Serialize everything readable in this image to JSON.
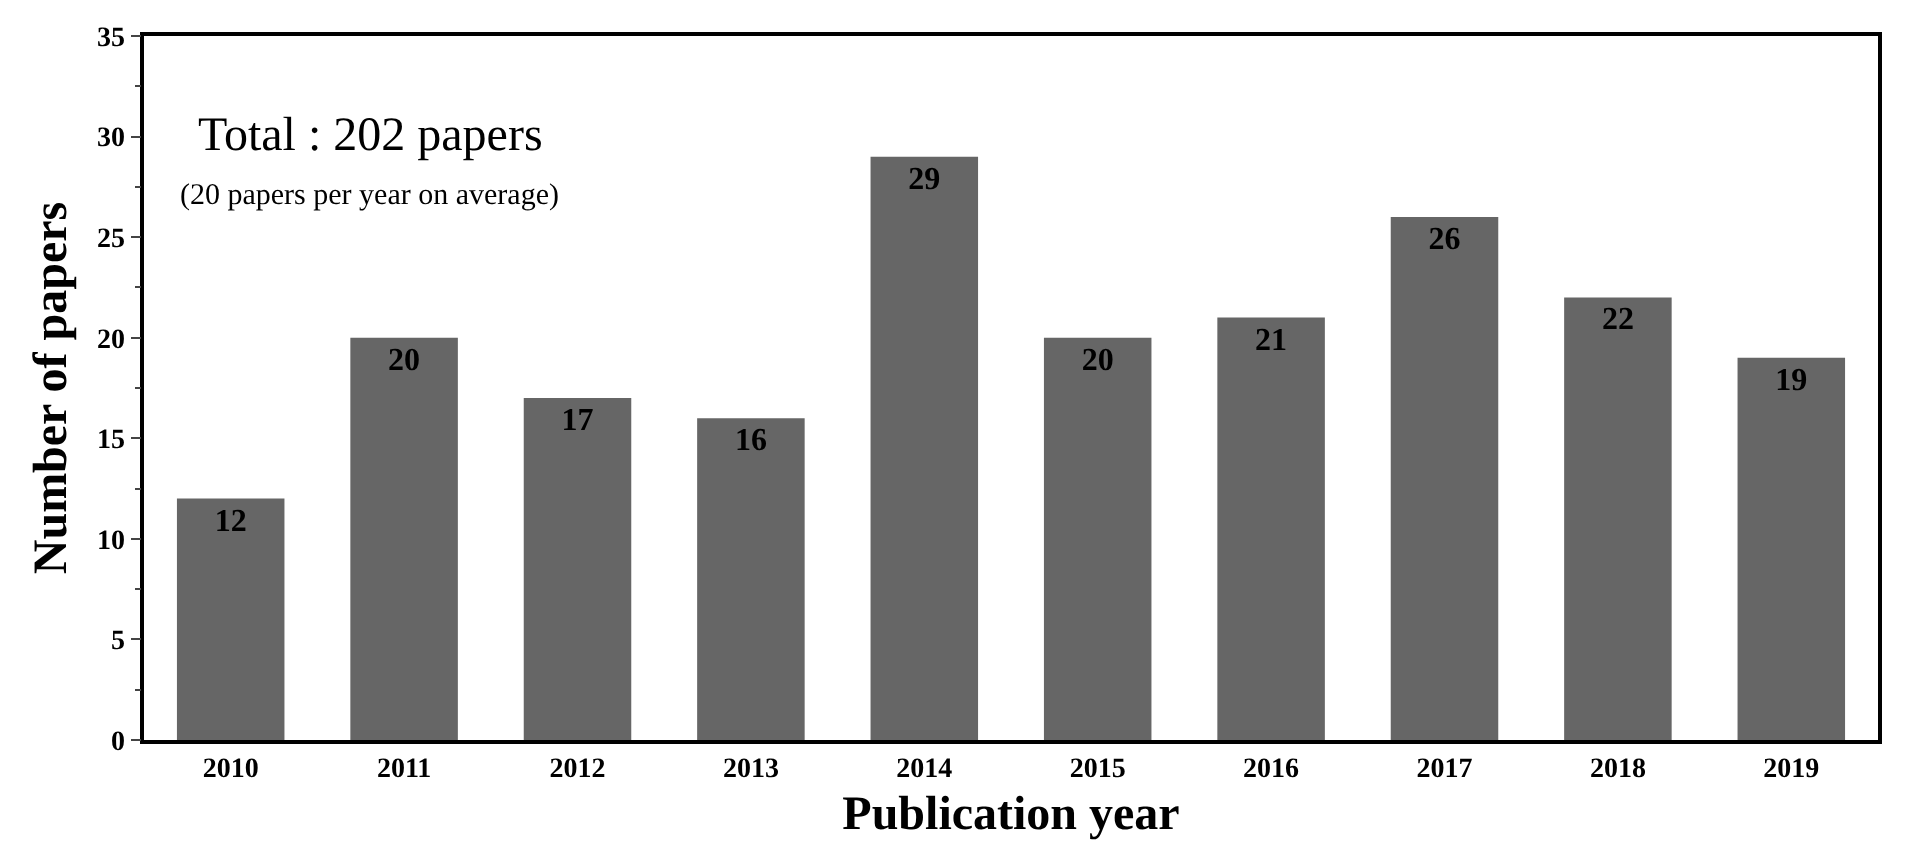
{
  "chart_data": {
    "type": "bar",
    "xlabel": "Publication year",
    "ylabel": "Number of papers",
    "categories": [
      "2010",
      "2011",
      "2012",
      "2013",
      "2014",
      "2015",
      "2016",
      "2017",
      "2018",
      "2019"
    ],
    "values": [
      12,
      20,
      17,
      16,
      29,
      20,
      21,
      26,
      22,
      19
    ],
    "color": "#666666",
    "ylim": [
      0,
      35
    ],
    "yticks": [
      0,
      5,
      10,
      15,
      20,
      25,
      30,
      35
    ],
    "legend": false,
    "data_labels": true,
    "annotations": [
      "Total : 202 papers",
      "(20 papers per year on average)"
    ]
  }
}
